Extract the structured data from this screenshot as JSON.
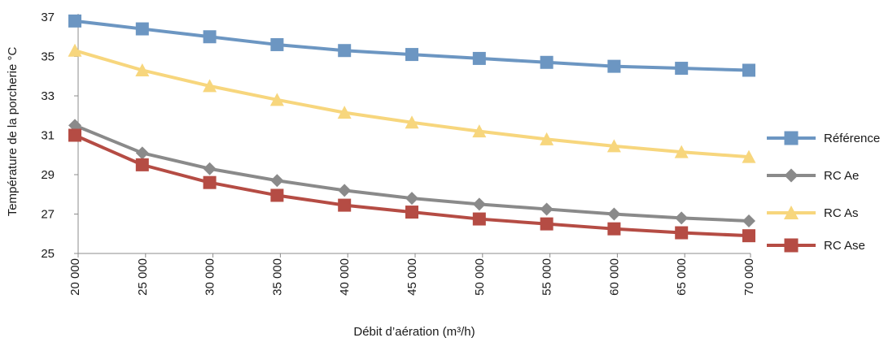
{
  "chart_data": {
    "type": "line",
    "xlabel": "Débit d’aération (m³/h)",
    "ylabel": "Température de la porcherie °C",
    "categories": [
      "20 000",
      "25 000",
      "30 000",
      "35 000",
      "40 000",
      "45 000",
      "50 000",
      "55 000",
      "60 000",
      "65 000",
      "70 000"
    ],
    "x": [
      20000,
      25000,
      30000,
      35000,
      40000,
      45000,
      50000,
      55000,
      60000,
      65000,
      70000
    ],
    "ylim": [
      25,
      37
    ],
    "yticks": [
      25,
      27,
      29,
      31,
      33,
      35,
      37
    ],
    "grid": false,
    "legend_position": "right",
    "series": [
      {
        "name": "Référence",
        "color": "#6c96c2",
        "marker": "square",
        "values": [
          36.8,
          36.4,
          36.0,
          35.6,
          35.3,
          35.1,
          34.9,
          34.7,
          34.5,
          34.4,
          34.3
        ]
      },
      {
        "name": "RC Ae",
        "color": "#8a8a8a",
        "marker": "diamond",
        "values": [
          31.5,
          30.1,
          29.3,
          28.7,
          28.2,
          27.8,
          27.5,
          27.25,
          27.0,
          26.8,
          26.65
        ]
      },
      {
        "name": "RC As",
        "color": "#f7d67d",
        "marker": "triangle",
        "values": [
          35.3,
          34.3,
          33.5,
          32.8,
          32.15,
          31.65,
          31.2,
          30.8,
          30.45,
          30.15,
          29.9
        ]
      },
      {
        "name": "RC Ase",
        "color": "#b54c44",
        "marker": "square",
        "values": [
          31.0,
          29.5,
          28.6,
          27.95,
          27.45,
          27.1,
          26.75,
          26.5,
          26.25,
          26.05,
          25.9
        ]
      }
    ]
  }
}
